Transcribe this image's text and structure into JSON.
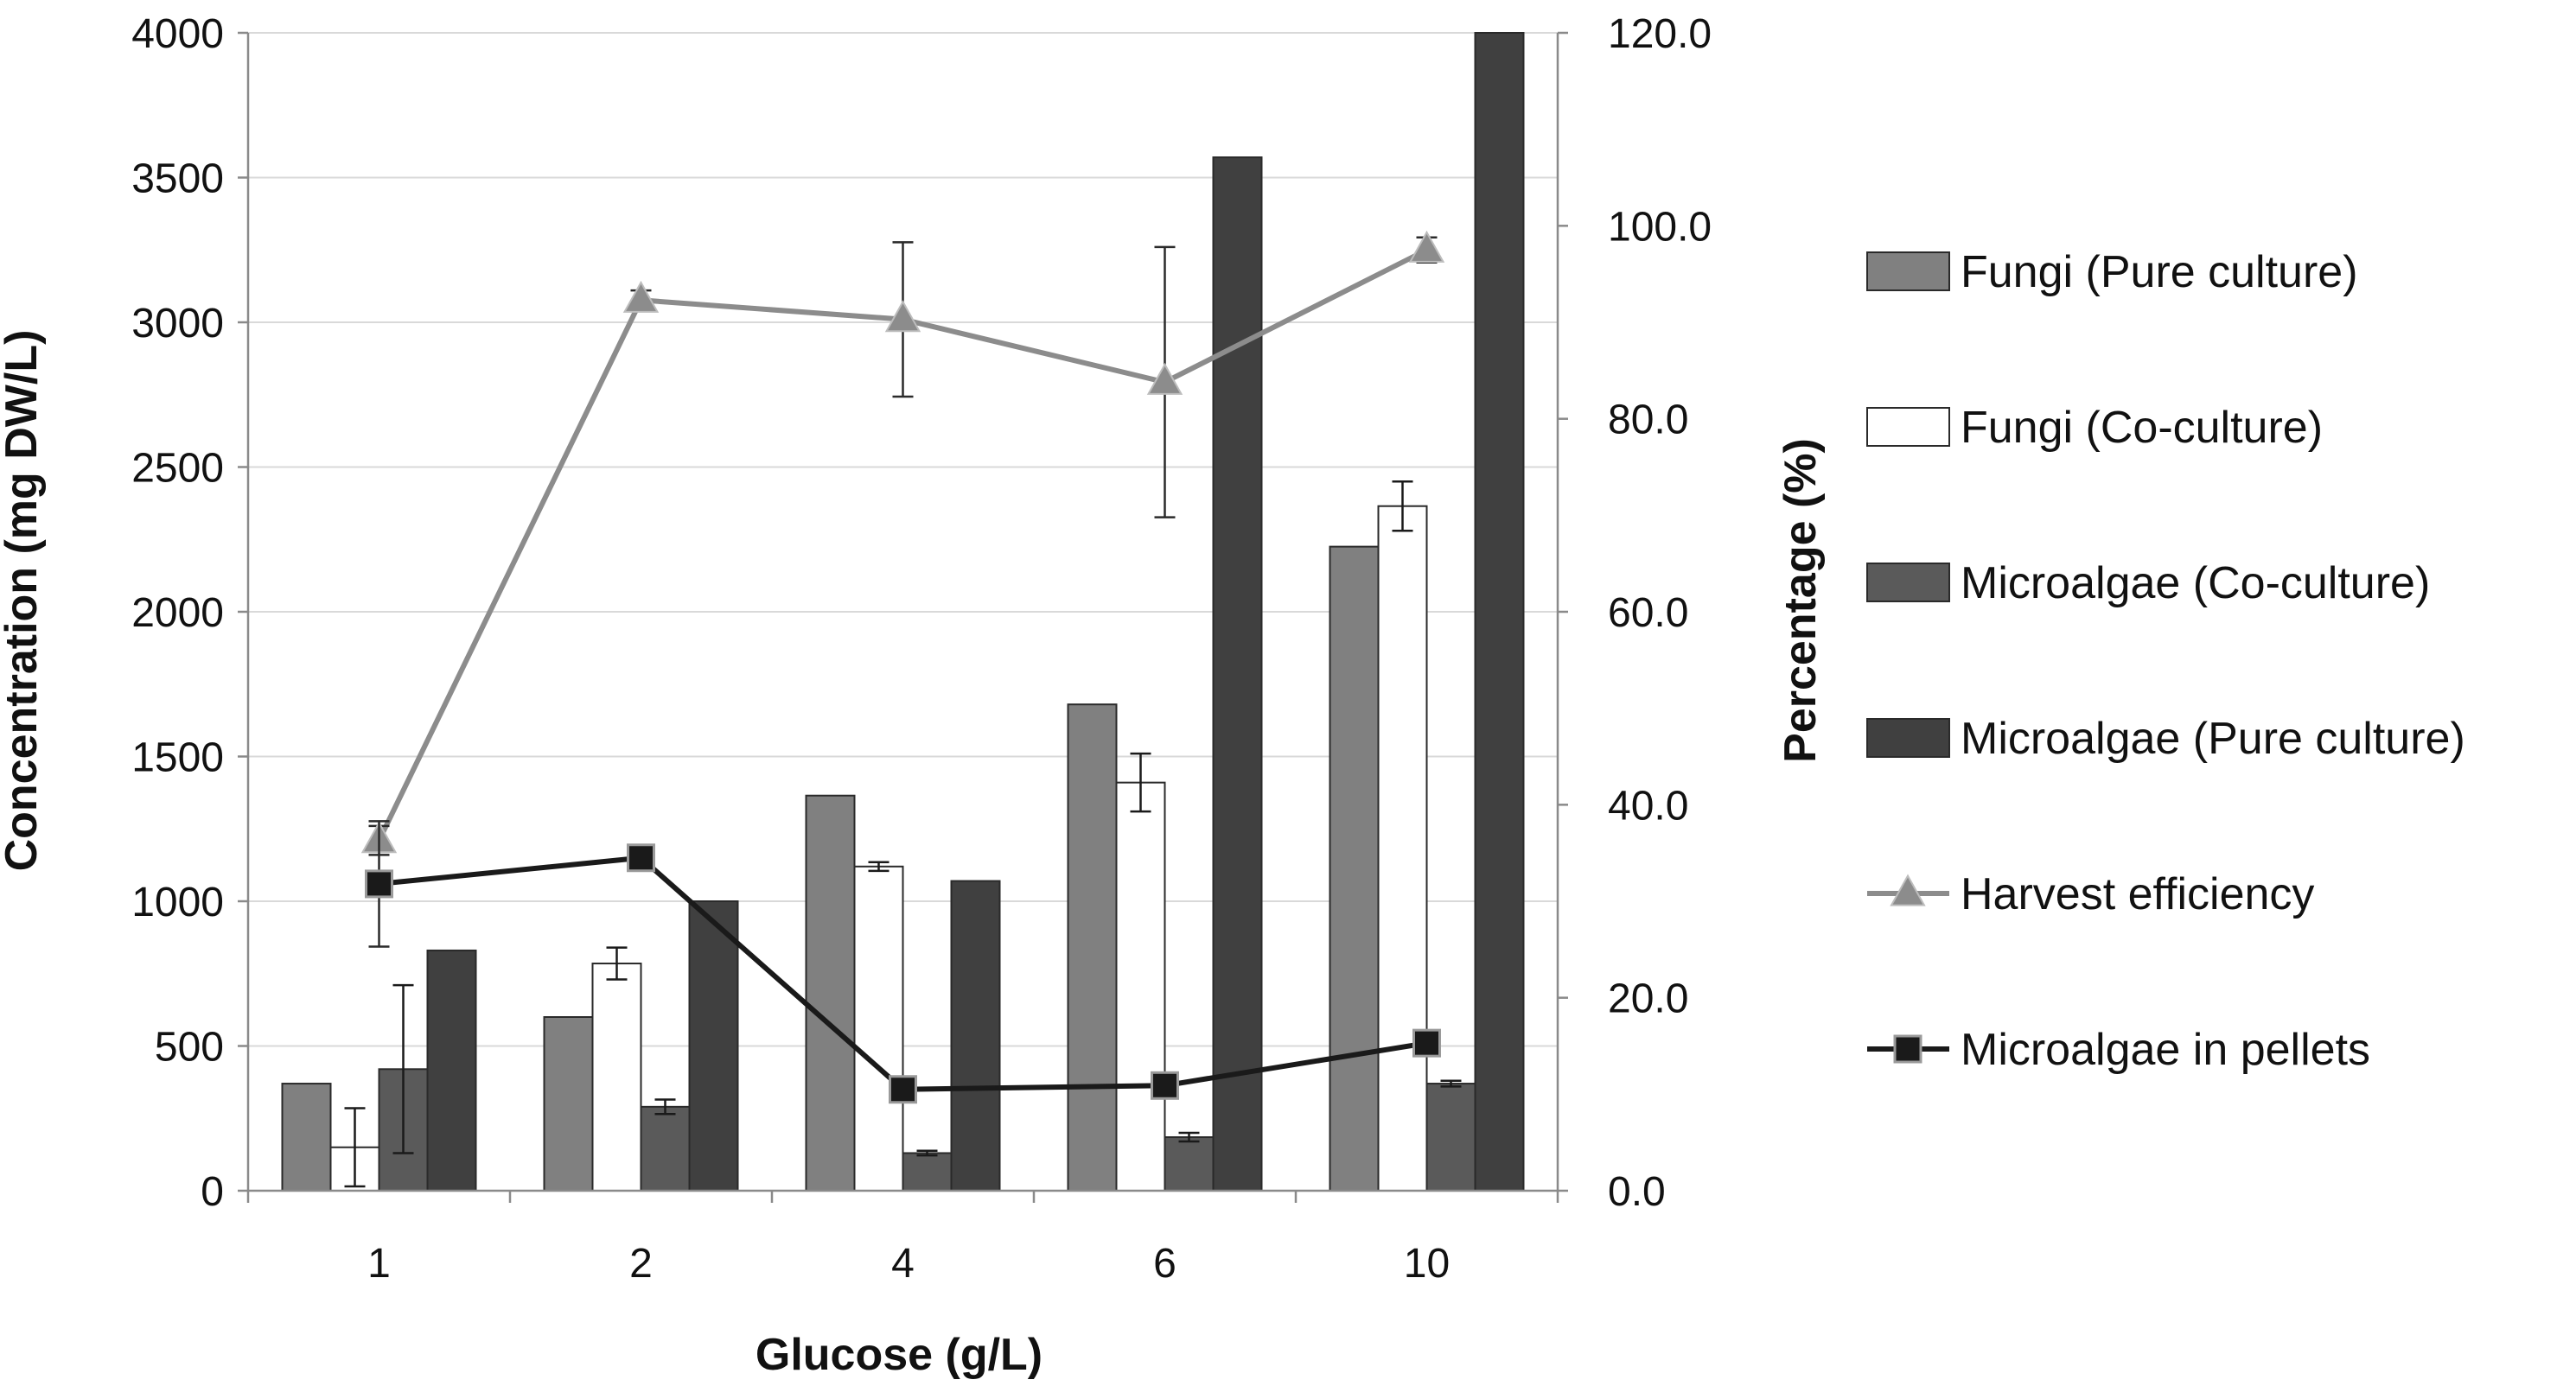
{
  "chart_data": {
    "type": "bar",
    "title": "",
    "xlabel": "Glucose (g/L)",
    "ylabel": "Concentration (mg DW/L)",
    "y2label": "Percentage (%)",
    "categories": [
      "1",
      "2",
      "4",
      "6",
      "10"
    ],
    "ylim": [
      0,
      4000
    ],
    "yticks": [
      "0",
      "500",
      "1000",
      "1500",
      "2000",
      "2500",
      "3000",
      "3500",
      "4000"
    ],
    "ytick_values": [
      0,
      500,
      1000,
      1500,
      2000,
      2500,
      3000,
      3500,
      4000
    ],
    "y2lim": [
      0,
      120
    ],
    "y2ticks": [
      "0.0",
      "20.0",
      "40.0",
      "60.0",
      "80.0",
      "100.0",
      "120.0"
    ],
    "y2tick_values": [
      0,
      20,
      40,
      60,
      80,
      100,
      120
    ],
    "legend_position": "right",
    "grid": "horizontal",
    "series": [
      {
        "name": "Fungi (Pure culture)",
        "kind": "bar",
        "axis": "left",
        "color": "#808080",
        "values": [
          370,
          600,
          1365,
          1680,
          2225
        ],
        "errors": [
          0,
          0,
          0,
          0,
          0
        ]
      },
      {
        "name": "Fungi (Co-culture)",
        "kind": "bar",
        "axis": "left",
        "color": "#ffffff",
        "values": [
          150,
          785,
          1120,
          1410,
          2365
        ],
        "errors": [
          135,
          55,
          15,
          100,
          85
        ]
      },
      {
        "name": "Microalgae (Co-culture)",
        "kind": "bar",
        "axis": "left",
        "color": "#5a5a5a",
        "values": [
          420,
          290,
          130,
          185,
          370
        ],
        "errors": [
          290,
          25,
          8,
          15,
          10
        ]
      },
      {
        "name": "Microalgae (Pure culture)",
        "kind": "bar",
        "axis": "left",
        "color": "#404040",
        "values": [
          830,
          1000,
          1070,
          3570,
          4000
        ],
        "errors": [
          0,
          0,
          0,
          0,
          0
        ]
      },
      {
        "name": "Harvest efficiency",
        "kind": "line",
        "marker": "triangle",
        "axis": "right",
        "color": "#8c8c8c",
        "values": [
          36.3,
          92.3,
          90.3,
          83.8,
          97.5
        ],
        "errors": [
          1.5,
          1.0,
          8.0,
          14.0,
          1.3
        ]
      },
      {
        "name": "Microalgae in pellets",
        "kind": "line",
        "marker": "square",
        "axis": "right",
        "color": "#1a1a1a",
        "values": [
          31.8,
          34.5,
          10.5,
          10.9,
          15.3
        ],
        "errors": [
          6.5,
          0,
          0,
          0,
          0
        ]
      }
    ]
  }
}
